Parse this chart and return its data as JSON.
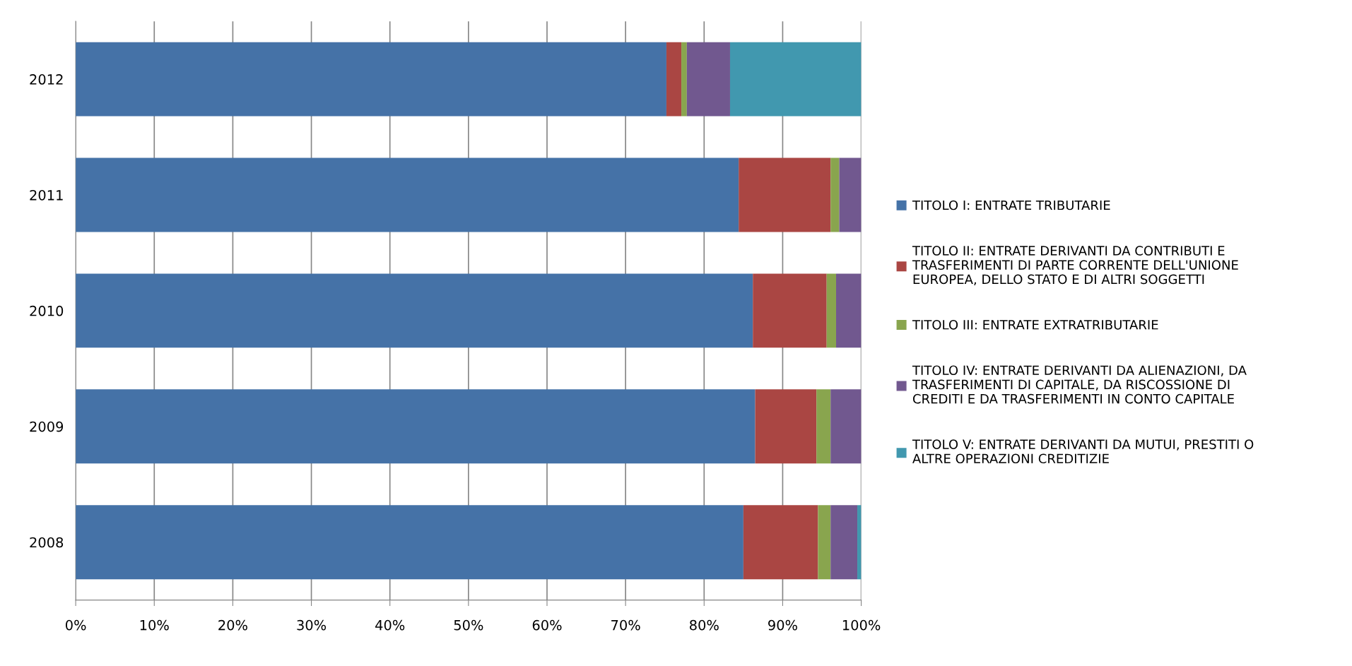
{
  "chart_data": {
    "type": "bar",
    "orientation": "horizontal",
    "stacked": true,
    "categories": [
      "2012",
      "2011",
      "2010",
      "2009",
      "2008"
    ],
    "series": [
      {
        "name": "TITOLO I: ENTRATE TRIBUTARIE",
        "color": "#4572a7",
        "values": [
          75.2,
          84.4,
          86.2,
          86.5,
          85.0
        ]
      },
      {
        "name": "TITOLO II: ENTRATE DERIVANTI DA CONTRIBUTI E\nTRASFERIMENTI DI PARTE CORRENTE DELL'UNIONE\nEUROPEA, DELLO STATO E DI ALTRI SOGGETTI",
        "color": "#aa4643",
        "values": [
          1.9,
          11.7,
          9.4,
          7.8,
          9.5
        ]
      },
      {
        "name": "TITOLO III: ENTRATE EXTRATRIBUTARIE",
        "color": "#89a54e",
        "values": [
          0.7,
          1.1,
          1.2,
          1.8,
          1.6
        ]
      },
      {
        "name": "TITOLO IV: ENTRATE DERIVANTI DA ALIENAZIONI, DA\nTRASFERIMENTI DI CAPITALE, DA RISCOSSIONE DI\nCREDITI E DA TRASFERIMENTI IN CONTO CAPITALE",
        "color": "#71588f",
        "values": [
          5.5,
          2.8,
          3.2,
          3.9,
          3.4
        ]
      },
      {
        "name": "TITOLO V: ENTRATE DERIVANTI DA MUTUI, PRESTITI O\nALTRE OPERAZIONI CREDITIZIE",
        "color": "#4198af",
        "values": [
          16.7,
          0,
          0,
          0,
          0.5
        ]
      }
    ],
    "xlim": [
      0,
      100
    ],
    "xticks": [
      {
        "value": 0,
        "label": "0%"
      },
      {
        "value": 10,
        "label": "10%"
      },
      {
        "value": 20,
        "label": "20%"
      },
      {
        "value": 30,
        "label": "30%"
      },
      {
        "value": 40,
        "label": "40%"
      },
      {
        "value": 50,
        "label": "50%"
      },
      {
        "value": 60,
        "label": "60%"
      },
      {
        "value": 70,
        "label": "70%"
      },
      {
        "value": 80,
        "label": "80%"
      },
      {
        "value": 90,
        "label": "90%"
      },
      {
        "value": 100,
        "label": "100%"
      }
    ],
    "grid": "x",
    "legend": "right"
  }
}
